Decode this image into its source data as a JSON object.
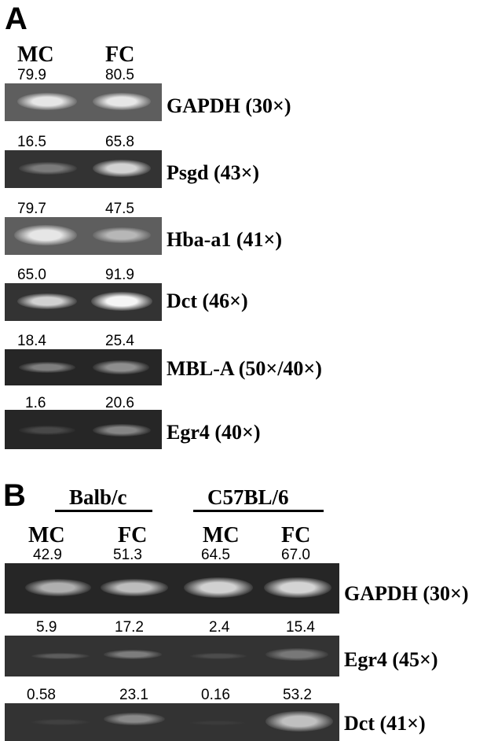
{
  "panel_a": {
    "letter": "A",
    "lanes": [
      "MC",
      "FC"
    ],
    "blots": [
      {
        "gene": "GAPDH (30×)",
        "mc": "79.9",
        "fc": "80.5",
        "mc_intensity": 0.799,
        "fc_intensity": 0.805
      },
      {
        "gene": "Psgd (43×)",
        "mc": "16.5",
        "fc": "65.8",
        "mc_intensity": 0.165,
        "fc_intensity": 0.658
      },
      {
        "gene": "Hba-a1 (41×)",
        "mc": "79.7",
        "fc": "47.5",
        "mc_intensity": 0.797,
        "fc_intensity": 0.475
      },
      {
        "gene": "Dct (46×)",
        "mc": "65.0",
        "fc": "91.9",
        "mc_intensity": 0.65,
        "fc_intensity": 0.919
      },
      {
        "gene": "MBL-A (50×/40×)",
        "mc": "18.4",
        "fc": "25.4",
        "mc_intensity": 0.184,
        "fc_intensity": 0.254
      },
      {
        "gene": "Egr4 (40×)",
        "mc": "1.6",
        "fc": "20.6",
        "mc_intensity": 0.016,
        "fc_intensity": 0.206
      }
    ]
  },
  "panel_b": {
    "letter": "B",
    "strains": [
      "Balb/c",
      "C57BL/6"
    ],
    "lanes": [
      "MC",
      "FC",
      "MC",
      "FC"
    ],
    "blots": [
      {
        "gene": "GAPDH (30×)",
        "values": [
          "42.9",
          "51.3",
          "64.5",
          "67.0"
        ],
        "intensities": [
          0.429,
          0.513,
          0.645,
          0.67
        ]
      },
      {
        "gene": "Egr4 (45×)",
        "values": [
          "5.9",
          "17.2",
          "2.4",
          "15.4"
        ],
        "intensities": [
          0.059,
          0.172,
          0.024,
          0.154
        ]
      },
      {
        "gene": "Dct (41×)",
        "values": [
          "0.58",
          "23.1",
          "0.16",
          "53.2"
        ],
        "intensities": [
          0.0058,
          0.231,
          0.0016,
          0.532
        ]
      }
    ]
  }
}
